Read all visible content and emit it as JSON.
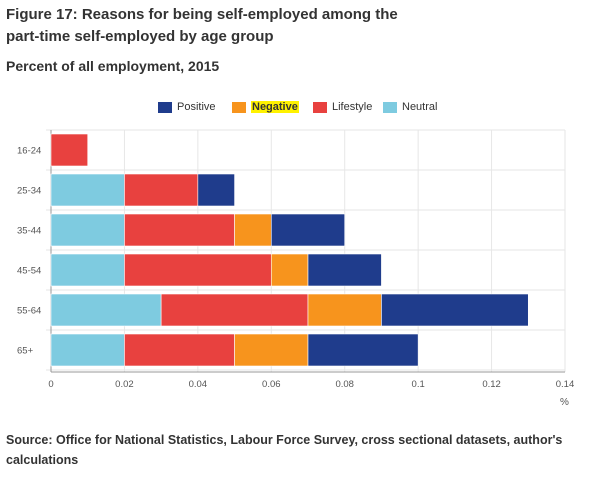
{
  "title": "Figure 17: Reasons for being self-employed among the part-time self-employed by age group",
  "subtitle": "Percent of all employment, 2015",
  "source": "Source: Office for National Statistics, Labour Force Survey, cross sectional datasets, author's calculations",
  "chart_data": {
    "type": "bar",
    "orientation": "horizontal",
    "stacked": true,
    "categories": [
      "16-24",
      "25-34",
      "35-44",
      "45-54",
      "55-64",
      "65+"
    ],
    "series": [
      {
        "name": "Neutral",
        "color": "#7ecbe0",
        "values": [
          0,
          0.02,
          0.02,
          0.02,
          0.03,
          0.02
        ]
      },
      {
        "name": "Lifestyle",
        "color": "#e8413f",
        "values": [
          0.01,
          0.02,
          0.03,
          0.04,
          0.04,
          0.03
        ]
      },
      {
        "name": "Negative",
        "color": "#f7941d",
        "values": [
          0,
          0,
          0.01,
          0.01,
          0.02,
          0.02
        ]
      },
      {
        "name": "Positive",
        "color": "#1f3c8c",
        "values": [
          0,
          0.01,
          0.02,
          0.02,
          0.04,
          0.03
        ]
      }
    ],
    "legend": [
      {
        "name": "Positive",
        "color": "#1f3c8c",
        "highlight": false
      },
      {
        "name": "Negative",
        "color": "#f7941d",
        "highlight": true
      },
      {
        "name": "Lifestyle",
        "color": "#e8413f",
        "highlight": false
      },
      {
        "name": "Neutral",
        "color": "#7ecbe0",
        "highlight": false
      }
    ],
    "x_ticks": [
      "0",
      "0.02",
      "0.04",
      "0.06",
      "0.08",
      "0.1",
      "0.12",
      "0.14"
    ],
    "xlim": [
      0,
      0.14
    ],
    "xlabel": "%",
    "ylabel": "",
    "grid": true,
    "legend_position": "top-right"
  }
}
